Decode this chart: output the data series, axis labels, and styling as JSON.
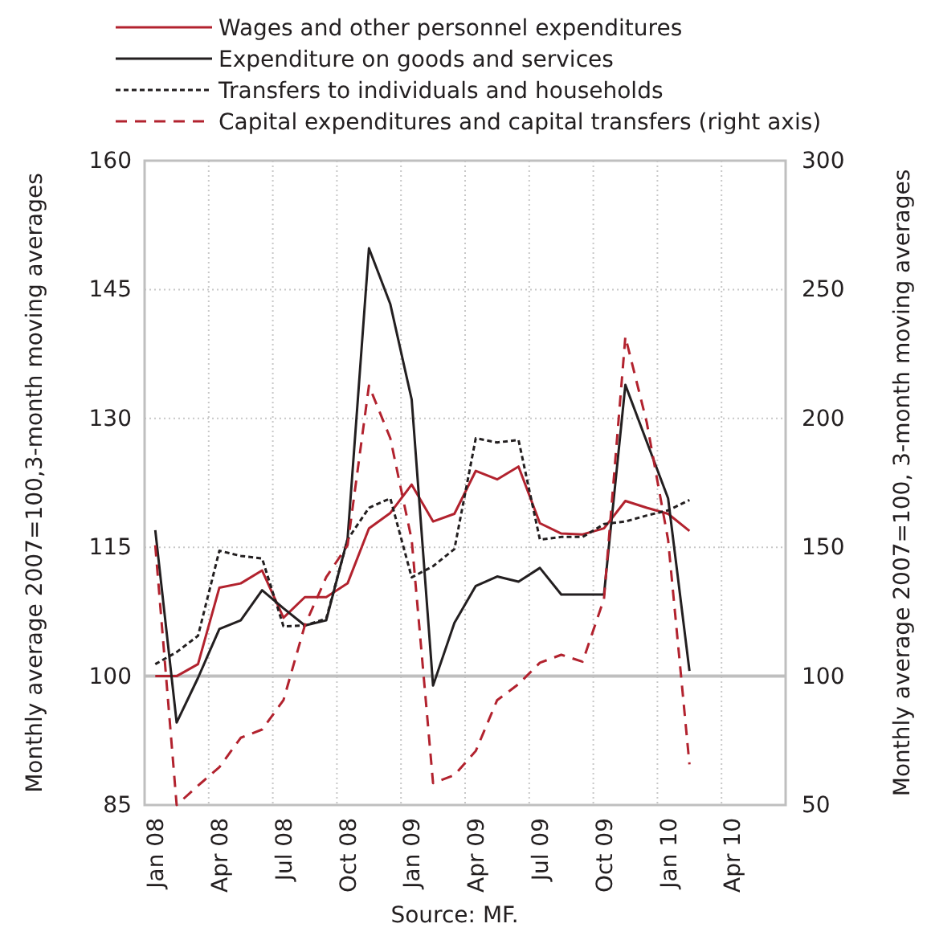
{
  "chart_data": {
    "type": "line",
    "ylabel": "Monthly average 2007=100,3-month moving averages",
    "y2label": "Monthly average 2007=100, 3-month moving averages",
    "annotations": [
      "Source: MF."
    ],
    "categories": [
      "Jan 08",
      null,
      null,
      "Apr 08",
      null,
      null,
      "Jul 08",
      null,
      null,
      "Oct 08",
      null,
      null,
      "Jan 09",
      null,
      null,
      "Apr 09",
      null,
      null,
      "Jul 09",
      null,
      null,
      "Oct 09",
      null,
      null,
      "Jan 10",
      null,
      null,
      "Apr 10",
      null,
      null
    ],
    "ylim": [
      85,
      160
    ],
    "yticks": [
      85,
      100,
      115,
      130,
      145,
      160
    ],
    "y2lim": [
      50,
      300
    ],
    "y2ticks": [
      50,
      100,
      150,
      200,
      250,
      300
    ],
    "grid": true,
    "legend": "top",
    "marker": "none",
    "ref_lines": [
      {
        "axis": "y",
        "value": 100,
        "color": "#bfbfbf"
      }
    ],
    "series": [
      {
        "name": "Wages and other personnel expenditures",
        "color": "#b2222e",
        "line_style": "solid",
        "values": [
          100,
          100,
          101.4,
          110.3,
          110.8,
          112.3,
          106.8,
          109.2,
          109.2,
          110.8,
          117.2,
          119,
          122.3,
          118,
          118.9,
          123.9,
          122.9,
          124.4,
          117.8,
          116.6,
          116.5,
          117.2,
          120.4,
          119.6,
          118.9,
          116.9,
          null,
          null,
          null,
          null
        ]
      },
      {
        "name": "Expenditure on goods and services",
        "color": "#231f20",
        "line_style": "solid",
        "values": [
          117,
          94.6,
          99.8,
          105.5,
          106.5,
          110,
          107.9,
          105.9,
          106.5,
          116,
          149.8,
          143.3,
          132.2,
          98.9,
          106.2,
          110.5,
          111.6,
          111,
          112.6,
          109.5,
          109.5,
          109.5,
          133.9,
          127.3,
          120.7,
          100.6,
          null,
          null,
          null,
          null
        ]
      },
      {
        "name": "Transfers to individuals and households",
        "color": "#231f20",
        "line_style": "dotted",
        "values": [
          101.4,
          102.8,
          104.7,
          114.6,
          114,
          113.7,
          105.8,
          105.9,
          106.7,
          115.9,
          119.6,
          120.7,
          111.5,
          112.8,
          114.8,
          127.7,
          127.2,
          127.5,
          115.9,
          116.2,
          116.2,
          117.7,
          118,
          118.7,
          119.3,
          120.5,
          null,
          null,
          null,
          null
        ]
      },
      {
        "name": "Capital expenditures and capital transfers (right axis)",
        "color": "#b2222e",
        "line_style": "dashed",
        "axis": "y2",
        "values": [
          150.8,
          50,
          57.5,
          64.7,
          76.1,
          79.3,
          90.7,
          119.7,
          138.4,
          150.8,
          212.7,
          192.3,
          152.9,
          58.5,
          61.6,
          71,
          90.7,
          96.9,
          105.2,
          108.3,
          105.6,
          130,
          231.7,
          198.5,
          152.9,
          65.8,
          null,
          null,
          null,
          null
        ]
      }
    ]
  }
}
